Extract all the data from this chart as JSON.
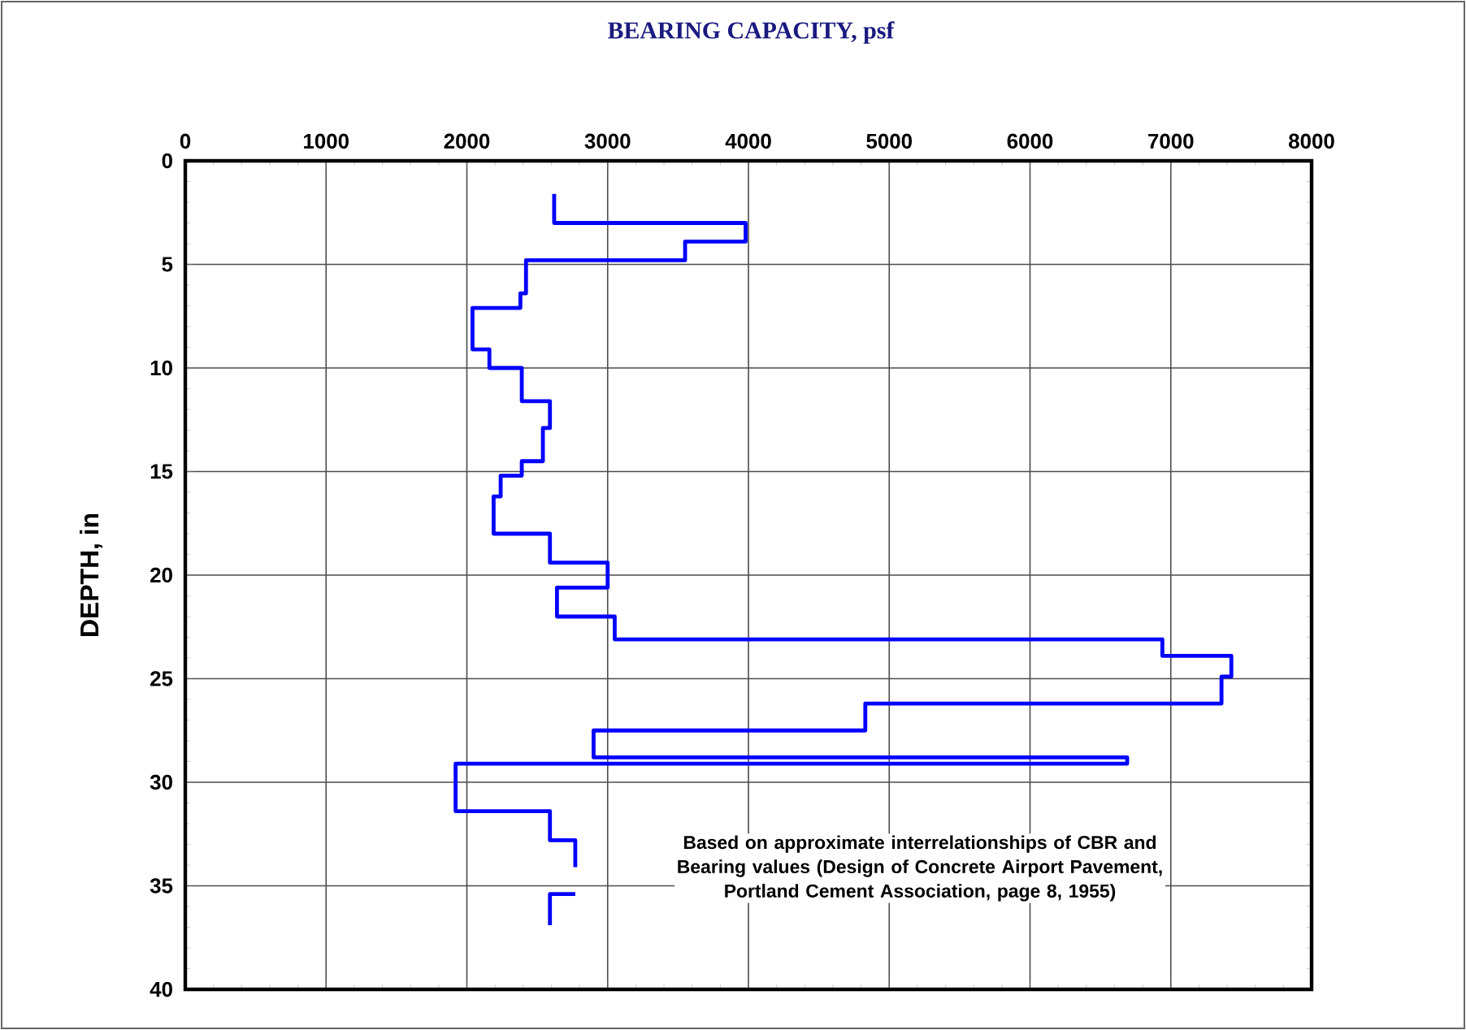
{
  "chart_data": {
    "type": "line",
    "title": "BEARING CAPACITY, psf",
    "ylabel": "DEPTH, in",
    "x": [
      2620,
      2620,
      3980,
      3980,
      3550,
      3550,
      2420,
      2420,
      2380,
      2380,
      2040,
      2040,
      2160,
      2160,
      2390,
      2390,
      2590,
      2590,
      2540,
      2540,
      2390,
      2390,
      2240,
      2240,
      2190,
      2190,
      2590,
      2590,
      3000,
      3000,
      2640,
      2640,
      3050,
      3050,
      6940,
      6940,
      7430,
      7430,
      7360,
      7360,
      4830,
      4830,
      2900,
      2900,
      6690,
      6690,
      1920,
      1920,
      2590,
      2590,
      2770,
      2770,
      null,
      2770,
      2590,
      2590
    ],
    "values": [
      1.6,
      3,
      3,
      3.9,
      3.9,
      4.8,
      4.8,
      6.4,
      6.4,
      7.1,
      7.1,
      9.1,
      9.1,
      10,
      10,
      11.6,
      11.6,
      12.9,
      12.9,
      14.5,
      14.5,
      15.2,
      15.2,
      16.2,
      16.2,
      18,
      18,
      19.4,
      19.4,
      20.6,
      20.6,
      22,
      22,
      23.1,
      23.1,
      23.9,
      23.9,
      24.9,
      24.9,
      26.2,
      26.2,
      27.5,
      27.5,
      28.8,
      28.8,
      29.1,
      29.1,
      31.4,
      31.4,
      32.8,
      32.8,
      34.1,
      null,
      35.4,
      35.4,
      36.9
    ],
    "color": "#0000ff",
    "line_style": "solid",
    "xlim": [
      0,
      8000
    ],
    "xticks": [
      0,
      1000,
      2000,
      3000,
      4000,
      5000,
      6000,
      7000,
      8000
    ],
    "ylim": [
      40,
      0
    ],
    "yticks": [
      0,
      5,
      10,
      15,
      20,
      25,
      30,
      35,
      40
    ],
    "grid": true,
    "annotations": [
      "Based on approximate interrelationships of CBR and Bearing values (Design of Concrete Airport Pavement, Portland Cement Association, page 8, 1955)"
    ]
  }
}
